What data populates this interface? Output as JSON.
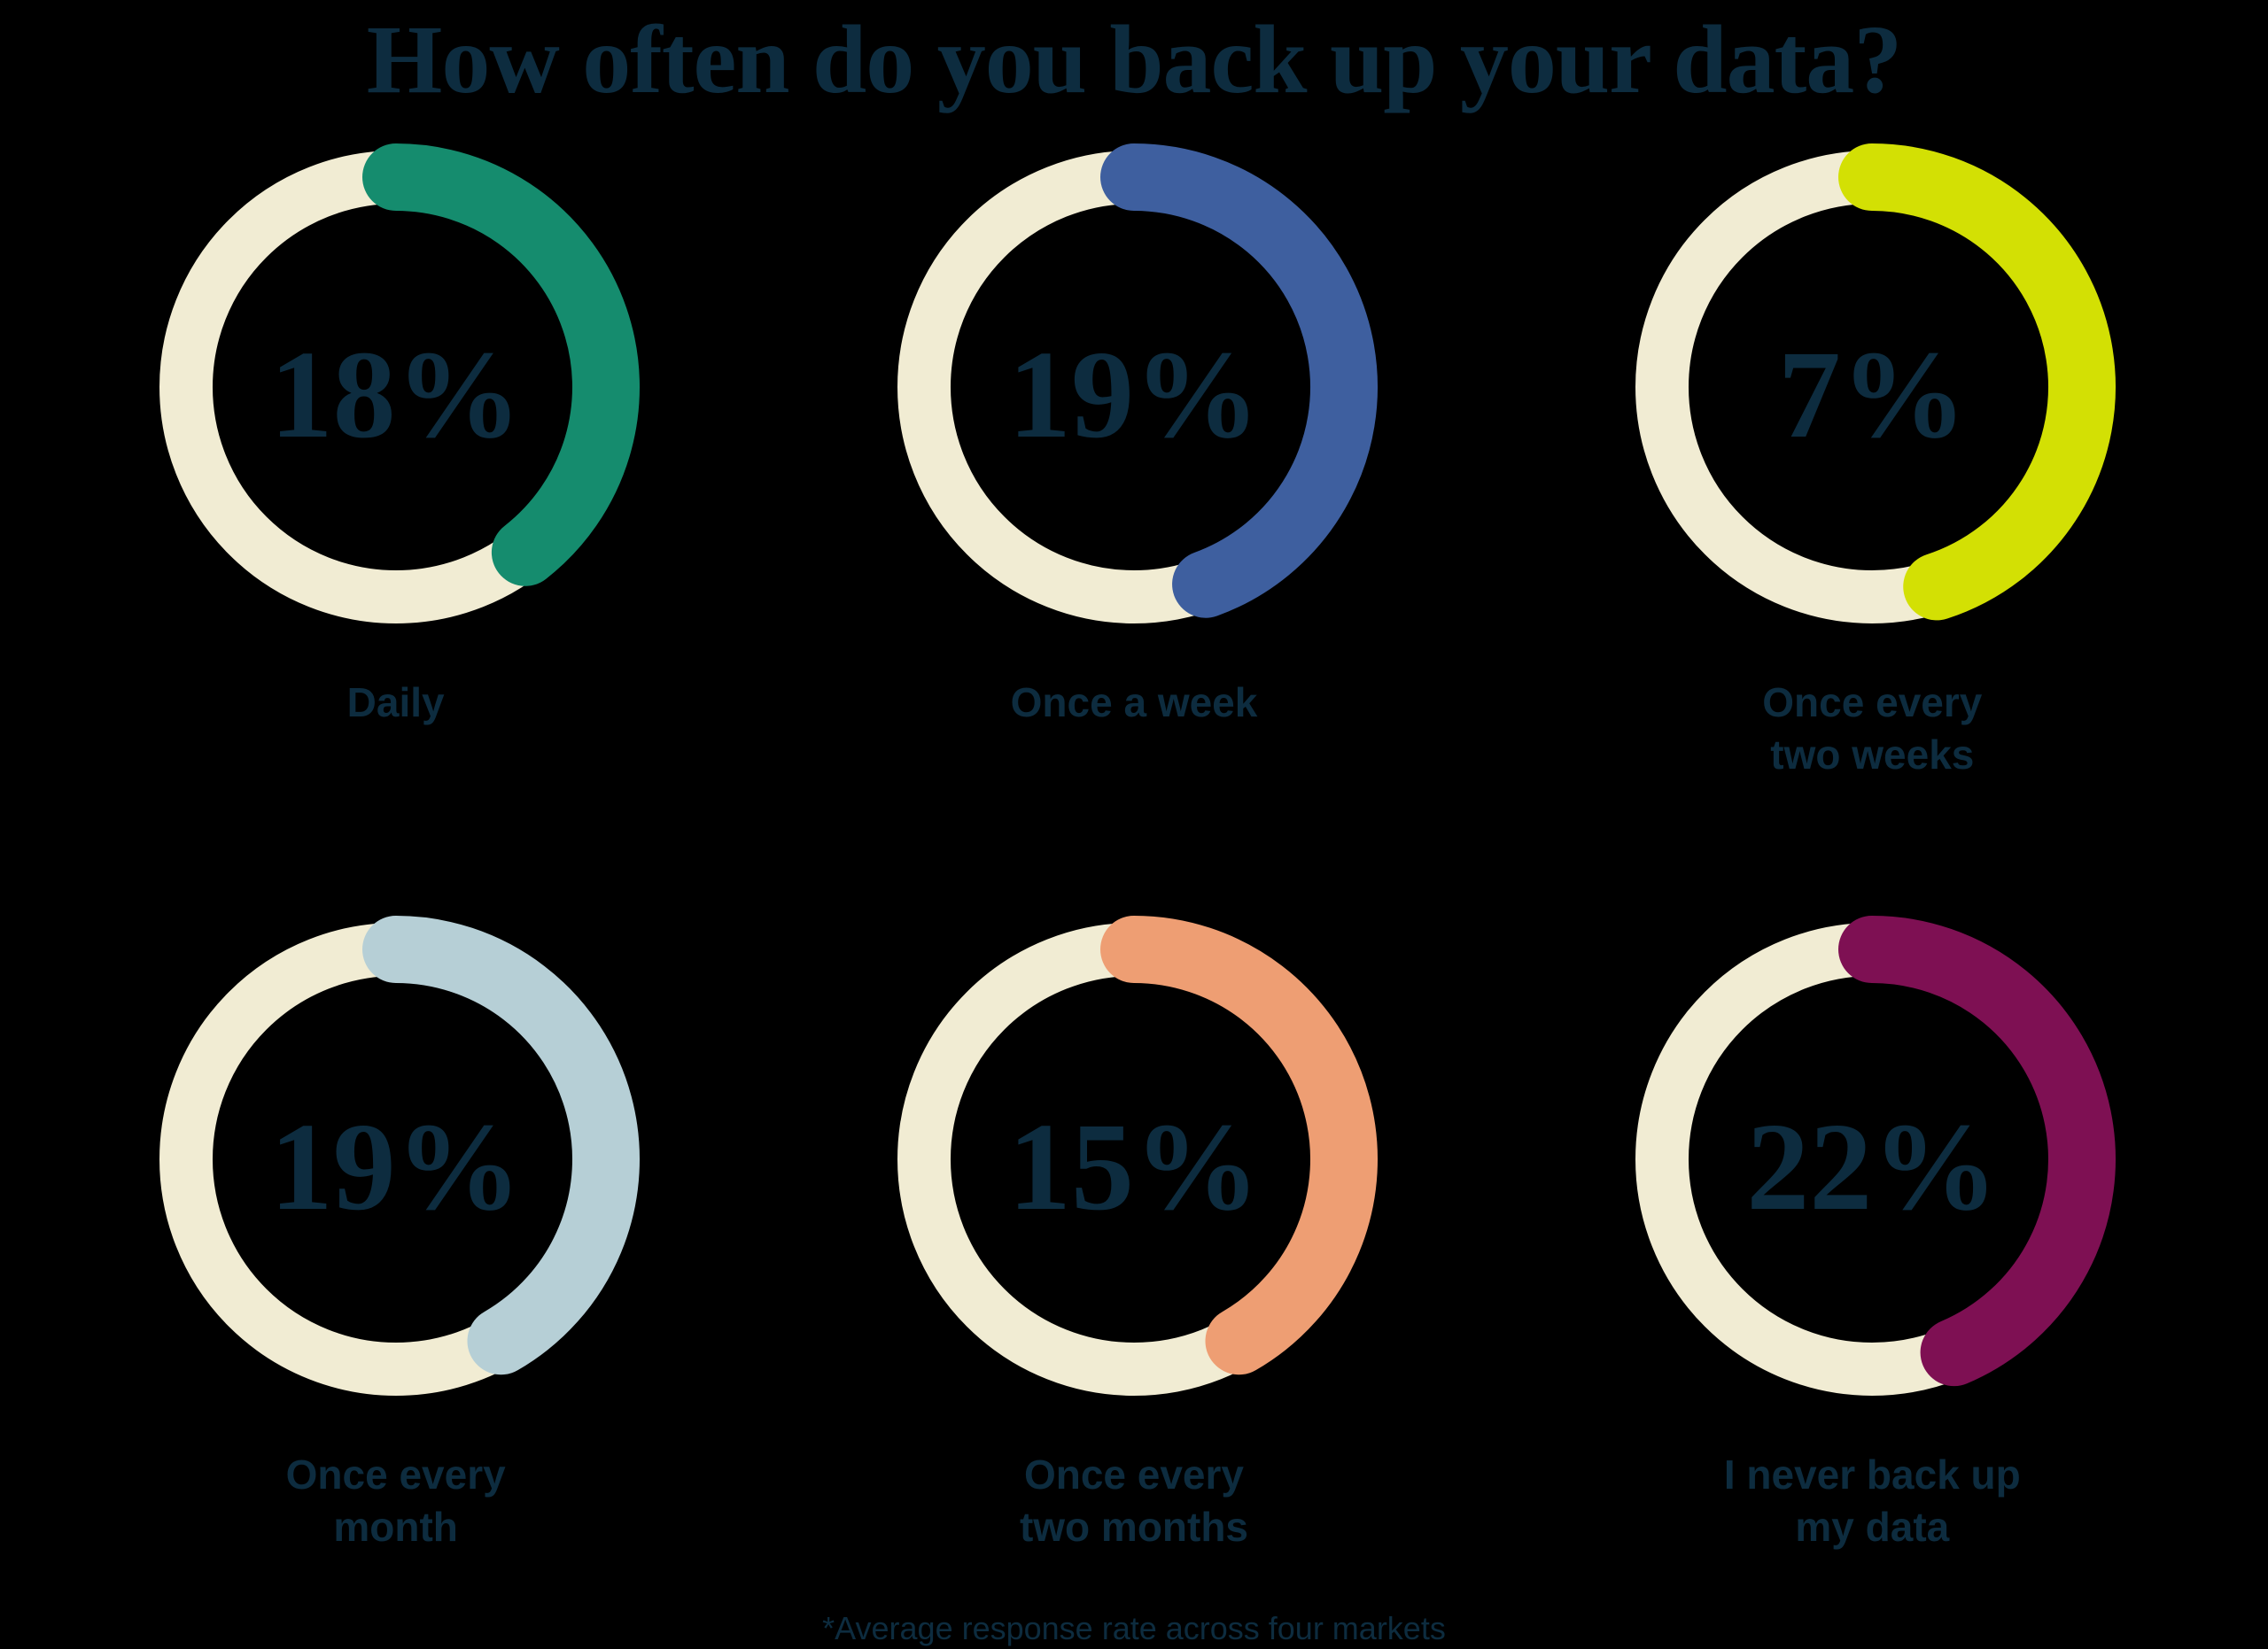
{
  "title": "How often do you back up your data?",
  "footnote": "*Average response rate across four markets",
  "colors": {
    "background": "#000000",
    "text": "#0d2c3f",
    "ring_track": "#f1ecd3"
  },
  "chart_data": {
    "type": "donut-grid",
    "title": "How often do you back up your data?",
    "unit": "%",
    "items": [
      {
        "label": "Daily",
        "label_lines": [
          "Daily"
        ],
        "value": 18,
        "value_label": "18%",
        "color": "#158c6e",
        "arc_sweep_deg": 142
      },
      {
        "label": "Once a week",
        "label_lines": [
          "Once a week"
        ],
        "value": 19,
        "value_label": "19%",
        "color": "#3e5f9f",
        "arc_sweep_deg": 160
      },
      {
        "label": "Once every two weeks",
        "label_lines": [
          "Once every",
          "two weeks"
        ],
        "value": 7,
        "value_label": "7%",
        "color": "#d3e004",
        "arc_sweep_deg": 162
      },
      {
        "label": "Once every month",
        "label_lines": [
          "Once every",
          "month"
        ],
        "value": 19,
        "value_label": "19%",
        "color": "#b6cfd6",
        "arc_sweep_deg": 150
      },
      {
        "label": "Once every two months",
        "label_lines": [
          "Once every",
          "two months"
        ],
        "value": 15,
        "value_label": "15%",
        "color": "#ee9e73",
        "arc_sweep_deg": 150
      },
      {
        "label": "I never back up my data",
        "label_lines": [
          "I never back up",
          "my data"
        ],
        "value": 22,
        "value_label": "22%",
        "color": "#7e1053",
        "arc_sweep_deg": 157
      }
    ],
    "layout": {
      "rows": 2,
      "cols": 3,
      "arc_start": "top",
      "arc_direction": "clockwise",
      "ring_track_stroke": 60,
      "arc_stroke": 76,
      "note": "arc length is stylized, not proportional to value",
      "legend": "none",
      "grid": "off"
    }
  }
}
